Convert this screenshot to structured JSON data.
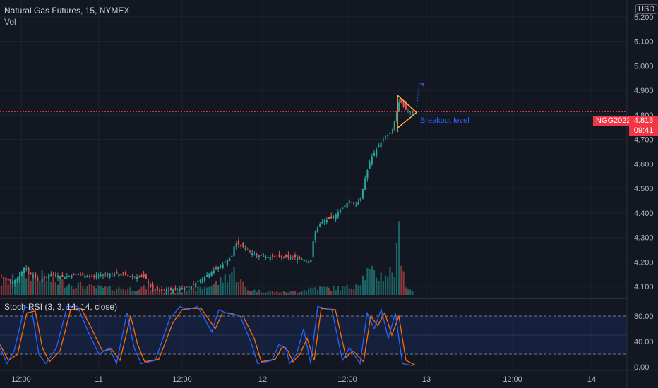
{
  "header": {
    "title": "Natural Gas Futures, 15, NYMEX",
    "volume_label": "Vol",
    "currency": "USD"
  },
  "price_scale": {
    "ticks": [
      "5.200",
      "5.100",
      "5.000",
      "4.900",
      "4.800",
      "4.700",
      "4.600",
      "4.500",
      "4.400",
      "4.300",
      "4.200",
      "4.100"
    ],
    "current_symbol": "NGG2022",
    "current_price": "4.813",
    "countdown": "09:41"
  },
  "stoch": {
    "title": "Stoch RSI (3, 3, 14, 14, close)",
    "ticks": [
      "80.00",
      "40.00",
      "0.00"
    ]
  },
  "time_axis": {
    "labels": [
      "12:00",
      "11",
      "12:00",
      "12",
      "12:00",
      "13",
      "12:00",
      "14"
    ]
  },
  "annotation": {
    "breakout_label": "Breakout level"
  },
  "colors": {
    "background": "#131722",
    "up": "#26a69a",
    "down": "#ef5350",
    "price_line": "#f23645",
    "k_line": "#2962ff",
    "d_line": "#ff6d00",
    "pennant": "#ffb74d"
  },
  "chart_data": {
    "type": "candlestick",
    "price_range": [
      4.06,
      5.24
    ],
    "current_price_level": 4.813,
    "breakout_level": 4.813,
    "stoch_bands": [
      20,
      80
    ],
    "stoch_range": [
      0,
      100
    ],
    "price_path": [
      [
        0,
        4.14
      ],
      [
        15,
        4.12
      ],
      [
        25,
        4.13
      ],
      [
        35,
        4.18
      ],
      [
        45,
        4.15
      ],
      [
        55,
        4.12
      ],
      [
        70,
        4.15
      ],
      [
        90,
        4.14
      ],
      [
        110,
        4.15
      ],
      [
        130,
        4.14
      ],
      [
        150,
        4.15
      ],
      [
        170,
        4.15
      ],
      [
        190,
        4.14
      ],
      [
        205,
        4.14
      ],
      [
        215,
        4.09
      ],
      [
        230,
        4.08
      ],
      [
        250,
        4.09
      ],
      [
        270,
        4.1
      ],
      [
        285,
        4.13
      ],
      [
        300,
        4.16
      ],
      [
        315,
        4.19
      ],
      [
        328,
        4.22
      ],
      [
        333,
        4.28
      ],
      [
        345,
        4.26
      ],
      [
        360,
        4.23
      ],
      [
        380,
        4.22
      ],
      [
        400,
        4.22
      ],
      [
        420,
        4.22
      ],
      [
        440,
        4.2
      ],
      [
        445,
        4.32
      ],
      [
        455,
        4.36
      ],
      [
        470,
        4.38
      ],
      [
        485,
        4.42
      ],
      [
        495,
        4.45
      ],
      [
        505,
        4.43
      ],
      [
        512,
        4.47
      ],
      [
        518,
        4.55
      ],
      [
        525,
        4.62
      ],
      [
        535,
        4.67
      ],
      [
        545,
        4.71
      ],
      [
        555,
        4.73
      ],
      [
        562,
        4.81
      ],
      [
        566,
        4.86
      ],
      [
        575,
        4.82
      ],
      [
        585,
        4.81
      ]
    ],
    "volume_path": [
      [
        0,
        0.18
      ],
      [
        20,
        0.25
      ],
      [
        40,
        0.35
      ],
      [
        60,
        0.28
      ],
      [
        80,
        0.2
      ],
      [
        100,
        0.18
      ],
      [
        130,
        0.12
      ],
      [
        160,
        0.1
      ],
      [
        190,
        0.1
      ],
      [
        210,
        0.12
      ],
      [
        230,
        0.05
      ],
      [
        260,
        0.06
      ],
      [
        290,
        0.12
      ],
      [
        310,
        0.2
      ],
      [
        330,
        0.38
      ],
      [
        350,
        0.08
      ],
      [
        380,
        0.05
      ],
      [
        420,
        0.05
      ],
      [
        445,
        0.12
      ],
      [
        470,
        0.1
      ],
      [
        495,
        0.12
      ],
      [
        512,
        0.25
      ],
      [
        520,
        0.35
      ],
      [
        540,
        0.3
      ],
      [
        560,
        0.4
      ],
      [
        566,
        1.0
      ],
      [
        575,
        0.12
      ],
      [
        590,
        0.03
      ]
    ],
    "stoch_k": [
      [
        0,
        30
      ],
      [
        10,
        5
      ],
      [
        20,
        25
      ],
      [
        35,
        95
      ],
      [
        45,
        90
      ],
      [
        55,
        20
      ],
      [
        65,
        5
      ],
      [
        80,
        30
      ],
      [
        95,
        95
      ],
      [
        110,
        95
      ],
      [
        125,
        55
      ],
      [
        140,
        20
      ],
      [
        155,
        30
      ],
      [
        165,
        5
      ],
      [
        180,
        85
      ],
      [
        190,
        30
      ],
      [
        200,
        5
      ],
      [
        220,
        10
      ],
      [
        240,
        75
      ],
      [
        255,
        95
      ],
      [
        265,
        90
      ],
      [
        280,
        95
      ],
      [
        300,
        55
      ],
      [
        310,
        90
      ],
      [
        320,
        85
      ],
      [
        340,
        80
      ],
      [
        355,
        40
      ],
      [
        365,
        5
      ],
      [
        385,
        10
      ],
      [
        395,
        35
      ],
      [
        405,
        30
      ],
      [
        410,
        5
      ],
      [
        420,
        20
      ],
      [
        430,
        60
      ],
      [
        440,
        5
      ],
      [
        450,
        95
      ],
      [
        470,
        90
      ],
      [
        485,
        10
      ],
      [
        495,
        30
      ],
      [
        510,
        5
      ],
      [
        520,
        85
      ],
      [
        530,
        60
      ],
      [
        540,
        90
      ],
      [
        550,
        45
      ],
      [
        560,
        85
      ],
      [
        570,
        5
      ],
      [
        585,
        2
      ]
    ],
    "stoch_d": [
      [
        0,
        35
      ],
      [
        12,
        10
      ],
      [
        25,
        20
      ],
      [
        38,
        85
      ],
      [
        50,
        88
      ],
      [
        60,
        30
      ],
      [
        70,
        8
      ],
      [
        85,
        25
      ],
      [
        100,
        90
      ],
      [
        115,
        92
      ],
      [
        130,
        60
      ],
      [
        145,
        25
      ],
      [
        158,
        28
      ],
      [
        170,
        10
      ],
      [
        185,
        80
      ],
      [
        195,
        35
      ],
      [
        205,
        8
      ],
      [
        225,
        12
      ],
      [
        245,
        70
      ],
      [
        258,
        90
      ],
      [
        270,
        92
      ],
      [
        285,
        92
      ],
      [
        305,
        60
      ],
      [
        315,
        85
      ],
      [
        325,
        85
      ],
      [
        345,
        78
      ],
      [
        360,
        45
      ],
      [
        370,
        8
      ],
      [
        390,
        12
      ],
      [
        400,
        32
      ],
      [
        408,
        25
      ],
      [
        415,
        8
      ],
      [
        425,
        20
      ],
      [
        435,
        45
      ],
      [
        445,
        10
      ],
      [
        455,
        92
      ],
      [
        475,
        90
      ],
      [
        490,
        15
      ],
      [
        500,
        25
      ],
      [
        515,
        8
      ],
      [
        525,
        80
      ],
      [
        535,
        65
      ],
      [
        545,
        85
      ],
      [
        555,
        50
      ],
      [
        565,
        80
      ],
      [
        575,
        10
      ],
      [
        588,
        3
      ]
    ]
  }
}
